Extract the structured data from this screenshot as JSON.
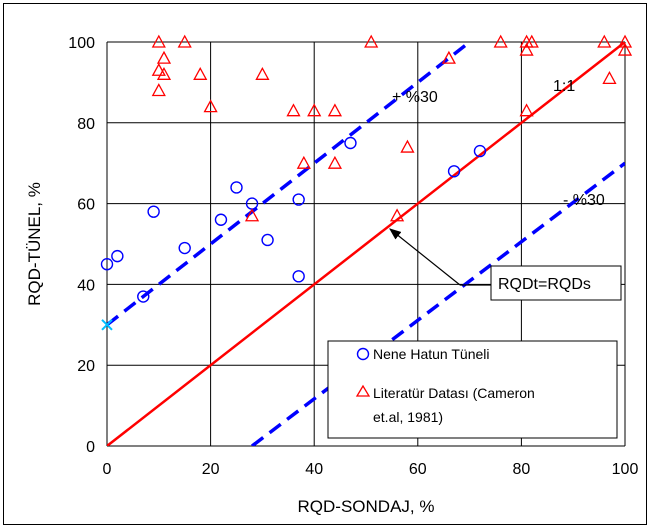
{
  "chart_data": {
    "type": "scatter",
    "xlabel": "RQD-SONDAJ, %",
    "ylabel": "RQD-TÜNEL, %",
    "xlim": [
      0,
      100
    ],
    "ylim": [
      0,
      100
    ],
    "x_ticks": [
      "0",
      "20",
      "40",
      "60",
      "80",
      "100"
    ],
    "y_ticks": [
      "0",
      "20",
      "40",
      "60",
      "80",
      "100"
    ],
    "grid": true,
    "legend_position": "bottom-right",
    "series": [
      {
        "name": "Nene Hatun Tüneli",
        "marker": "circle",
        "color": "#0000ff",
        "points": [
          [
            0,
            45
          ],
          [
            2,
            47
          ],
          [
            7,
            37
          ],
          [
            9,
            58
          ],
          [
            15,
            49
          ],
          [
            22,
            56
          ],
          [
            25,
            64
          ],
          [
            28,
            60
          ],
          [
            31,
            51
          ],
          [
            37,
            61
          ],
          [
            37,
            42
          ],
          [
            47,
            75
          ],
          [
            67,
            68
          ],
          [
            72,
            73
          ]
        ]
      },
      {
        "name": "Literatür Datası (Cameron et.al, 1981)",
        "legend_lines": [
          "Literatür Datası (Cameron",
          "et.al, 1981)"
        ],
        "marker": "triangle",
        "color": "#ff0000",
        "points": [
          [
            10,
            100
          ],
          [
            15,
            100
          ],
          [
            10,
            93
          ],
          [
            11,
            96
          ],
          [
            11,
            92
          ],
          [
            10,
            88
          ],
          [
            18,
            92
          ],
          [
            20,
            84
          ],
          [
            30,
            92
          ],
          [
            36,
            83
          ],
          [
            40,
            83
          ],
          [
            44,
            83
          ],
          [
            38,
            70
          ],
          [
            44,
            70
          ],
          [
            28,
            57
          ],
          [
            51,
            100
          ],
          [
            58,
            74
          ],
          [
            56,
            57
          ],
          [
            66,
            96
          ],
          [
            76,
            100
          ],
          [
            81,
            100
          ],
          [
            82,
            100
          ],
          [
            81,
            98
          ],
          [
            81,
            83
          ],
          [
            96,
            100
          ],
          [
            97,
            91
          ],
          [
            100,
            100
          ],
          [
            100,
            98
          ]
        ]
      }
    ],
    "lines": [
      {
        "label": "1:1",
        "color": "#ff0000",
        "style": "solid",
        "from": [
          0,
          0
        ],
        "to": [
          100,
          100
        ]
      },
      {
        "label": "+ %30",
        "color": "#0000ff",
        "style": "dashed",
        "from": [
          0,
          30
        ],
        "to": [
          70,
          100
        ]
      },
      {
        "label": "- %30",
        "color": "#0000ff",
        "style": "dashed",
        "from": [
          28,
          0
        ],
        "to": [
          100,
          70
        ]
      }
    ],
    "highlight_point": {
      "x": 0,
      "y": 30,
      "color": "#00bfff"
    },
    "annotations": {
      "one_to_one": "1:1",
      "plus": "+ %30",
      "minus": "- %30",
      "equation": "RQDt=RQDs"
    }
  }
}
